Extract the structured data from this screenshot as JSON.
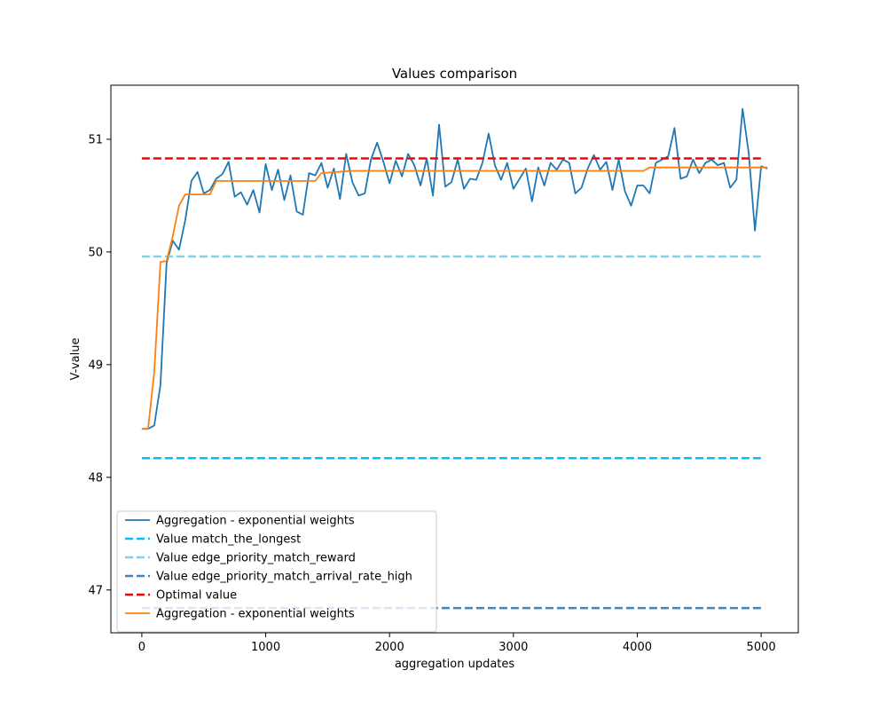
{
  "chart_data": {
    "type": "line",
    "title": "Values comparison",
    "xlabel": "aggregation updates",
    "ylabel": "V-value",
    "xlim": [
      -250,
      5300
    ],
    "ylim": [
      46.62,
      51.48
    ],
    "xticks": [
      0,
      1000,
      2000,
      3000,
      4000,
      5000
    ],
    "yticks": [
      47,
      48,
      49,
      50,
      51
    ],
    "grid": false,
    "legend_position": "lower-left",
    "series": [
      {
        "name": "Aggregation - exponential weights",
        "kind": "line",
        "color": "#1f77b4",
        "dashed": false,
        "x": [
          0,
          50,
          100,
          150,
          200,
          250,
          300,
          350,
          400,
          450,
          500,
          550,
          600,
          650,
          700,
          750,
          800,
          850,
          900,
          950,
          1000,
          1050,
          1100,
          1150,
          1200,
          1250,
          1300,
          1350,
          1400,
          1450,
          1500,
          1550,
          1600,
          1650,
          1700,
          1750,
          1800,
          1850,
          1900,
          1950,
          2000,
          2050,
          2100,
          2150,
          2200,
          2250,
          2300,
          2350,
          2400,
          2450,
          2500,
          2550,
          2600,
          2650,
          2700,
          2750,
          2800,
          2850,
          2900,
          2950,
          3000,
          3050,
          3100,
          3150,
          3200,
          3250,
          3300,
          3350,
          3400,
          3450,
          3500,
          3550,
          3600,
          3650,
          3700,
          3750,
          3800,
          3850,
          3900,
          3950,
          4000,
          4050,
          4100,
          4150,
          4200,
          4250,
          4300,
          4350,
          4400,
          4450,
          4500,
          4550,
          4600,
          4650,
          4700,
          4750,
          4800,
          4850,
          4900,
          4950,
          5000,
          5050
        ],
        "y": [
          48.43,
          48.43,
          48.46,
          48.82,
          49.9,
          50.1,
          50.02,
          50.28,
          50.63,
          50.71,
          50.52,
          50.55,
          50.65,
          50.69,
          50.8,
          50.49,
          50.53,
          50.42,
          50.55,
          50.35,
          50.78,
          50.55,
          50.73,
          50.46,
          50.68,
          50.36,
          50.33,
          50.7,
          50.68,
          50.79,
          50.57,
          50.74,
          50.47,
          50.87,
          50.62,
          50.5,
          50.52,
          50.82,
          50.97,
          50.8,
          50.61,
          50.81,
          50.67,
          50.87,
          50.77,
          50.59,
          50.83,
          50.5,
          51.13,
          50.58,
          50.62,
          50.82,
          50.56,
          50.65,
          50.64,
          50.79,
          51.05,
          50.77,
          50.64,
          50.79,
          50.56,
          50.65,
          50.74,
          50.45,
          50.75,
          50.59,
          50.79,
          50.73,
          50.82,
          50.79,
          50.52,
          50.57,
          50.74,
          50.86,
          50.73,
          50.8,
          50.55,
          50.82,
          50.54,
          50.41,
          50.59,
          50.59,
          50.52,
          50.79,
          50.82,
          50.85,
          51.1,
          50.65,
          50.67,
          50.82,
          50.7,
          50.79,
          50.82,
          50.77,
          50.79,
          50.57,
          50.64,
          51.27,
          50.88,
          50.19,
          50.76,
          50.74
        ]
      },
      {
        "name": "Value match_the_longest",
        "kind": "hline",
        "color": "#00bfff",
        "dashed": true,
        "x": [
          0,
          5000
        ],
        "y": [
          48.17,
          48.17
        ]
      },
      {
        "name": "Value edge_priority_match_reward",
        "kind": "hline",
        "color": "#87ceeb",
        "dashed": true,
        "x": [
          0,
          5000
        ],
        "y": [
          49.96,
          49.96
        ]
      },
      {
        "name": "Value edge_priority_match_arrival_rate_high",
        "kind": "hline",
        "color": "#4682b4",
        "dashed": true,
        "x": [
          0,
          5000
        ],
        "y": [
          46.84,
          46.84
        ]
      },
      {
        "name": "Optimal value",
        "kind": "hline",
        "color": "#ff0000",
        "dashed": true,
        "x": [
          0,
          5000
        ],
        "y": [
          50.83,
          50.83
        ]
      },
      {
        "name": "Aggregation - exponential weights",
        "kind": "line",
        "color": "#ff7f0e",
        "dashed": false,
        "x": [
          0,
          50,
          100,
          150,
          200,
          250,
          300,
          350,
          400,
          450,
          500,
          550,
          600,
          1400,
          1450,
          1700,
          4050,
          4100,
          5050
        ],
        "y": [
          48.43,
          48.43,
          48.93,
          49.91,
          49.92,
          50.14,
          50.41,
          50.51,
          50.51,
          50.51,
          50.51,
          50.51,
          50.63,
          50.63,
          50.7,
          50.72,
          50.72,
          50.75,
          50.75
        ]
      }
    ]
  }
}
